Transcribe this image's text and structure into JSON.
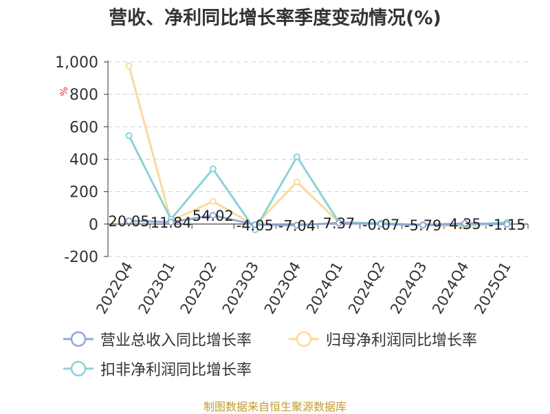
{
  "title": "营收、净利同比增长率季度变动情况(%)",
  "unit_label": "%",
  "source_note": "制图数据来自恒生聚源数据库",
  "chart_data": {
    "type": "line",
    "title": "营收、净利同比增长率季度变动情况(%)",
    "ylabel": "%",
    "categories": [
      "2022Q4",
      "2023Q1",
      "2023Q2",
      "2023Q3",
      "2023Q4",
      "2024Q1",
      "2024Q2",
      "2024Q3",
      "2024Q4",
      "2025Q1"
    ],
    "ylim": [
      -200,
      1000
    ],
    "yticks": [
      -200,
      0,
      200,
      400,
      600,
      800,
      1000
    ],
    "ytick_labels": [
      "-200",
      "0",
      "200",
      "400",
      "600",
      "800",
      "1,000"
    ],
    "grid": true,
    "legend_position": "bottom",
    "series": [
      {
        "name": "营业总收入同比增长率",
        "color": "#8fa8d8",
        "values": [
          20.05,
          11.84,
          54.02,
          -4.05,
          -7.04,
          7.37,
          -0.07,
          -5.79,
          4.35,
          -1.15
        ],
        "labels": [
          "20.05",
          "11.84",
          "54.02",
          "-4.05",
          "-7.04",
          "7.37",
          "-0.07",
          "-5.79",
          "4.35",
          "-1.15"
        ]
      },
      {
        "name": "归母净利润同比增长率",
        "color": "#fcd99a",
        "values": [
          975,
          20,
          140,
          -10,
          260,
          10,
          5,
          -5,
          -15,
          5
        ]
      },
      {
        "name": "扣非净利润同比增长率",
        "color": "#8ad3d8",
        "values": [
          545,
          30,
          340,
          -35,
          415,
          10,
          5,
          -5,
          -5,
          10
        ]
      }
    ]
  }
}
